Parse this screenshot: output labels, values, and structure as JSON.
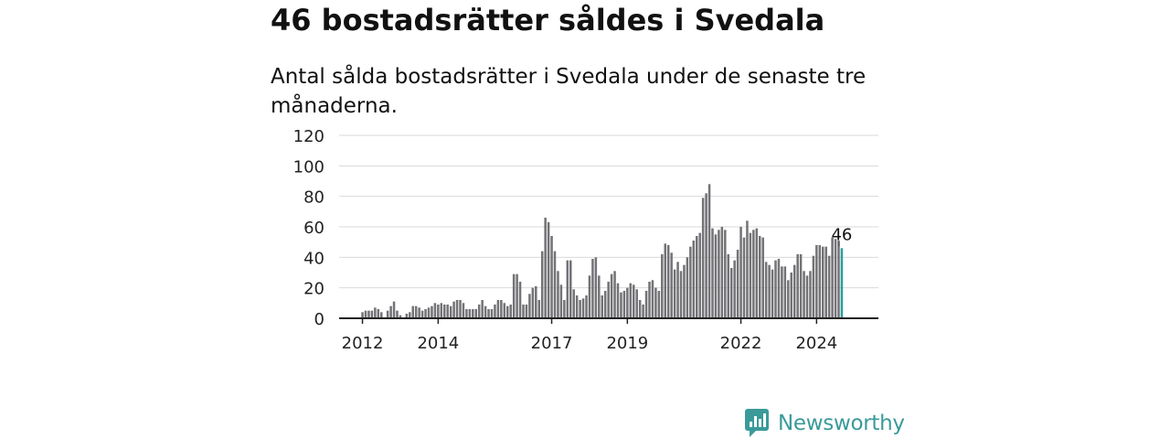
{
  "header": {
    "title": "46 bostadsrätter såldes i Svedala",
    "subtitle": "Antal sålda bostadsrätter i Svedala under de senaste tre månaderna."
  },
  "brand": {
    "name": "Newsworthy"
  },
  "colors": {
    "bar": "#737276",
    "highlight": "#2a9d9c",
    "grid": "#d9d9d9",
    "axis": "#222222",
    "brand": "#3a9a99"
  },
  "chart_data": {
    "type": "bar",
    "title": "",
    "xlabel": "",
    "ylabel": "",
    "ylim": [
      0,
      120
    ],
    "yticks": [
      "0",
      "20",
      "40",
      "60",
      "80",
      "100",
      "120"
    ],
    "xticks": [
      {
        "label": "2012",
        "index": 3
      },
      {
        "label": "2014",
        "index": 27
      },
      {
        "label": "2017",
        "index": 63
      },
      {
        "label": "2019",
        "index": 87
      },
      {
        "label": "2022",
        "index": 123
      },
      {
        "label": "2024",
        "index": 147
      }
    ],
    "start": "2011-10",
    "interval": "month",
    "values": [
      0,
      0,
      0,
      4,
      5,
      5,
      5,
      7,
      6,
      4,
      0,
      5,
      8,
      11,
      5,
      2,
      0,
      3,
      4,
      8,
      8,
      7,
      5,
      6,
      7,
      8,
      10,
      9,
      10,
      9,
      9,
      8,
      11,
      12,
      12,
      10,
      6,
      6,
      6,
      6,
      9,
      12,
      8,
      6,
      6,
      9,
      12,
      12,
      10,
      8,
      9,
      29,
      29,
      24,
      9,
      9,
      16,
      20,
      21,
      12,
      44,
      66,
      63,
      54,
      44,
      31,
      22,
      12,
      38,
      38,
      19,
      15,
      12,
      13,
      15,
      28,
      39,
      40,
      28,
      15,
      18,
      24,
      29,
      31,
      23,
      17,
      18,
      20,
      23,
      22,
      19,
      12,
      9,
      18,
      24,
      25,
      20,
      18,
      42,
      49,
      48,
      43,
      32,
      37,
      31,
      35,
      40,
      47,
      51,
      54,
      56,
      79,
      82,
      88,
      59,
      55,
      58,
      60,
      58,
      42,
      33,
      38,
      45,
      60,
      53,
      64,
      56,
      58,
      59,
      54,
      53,
      37,
      35,
      32,
      38,
      39,
      34,
      34,
      25,
      30,
      35,
      42,
      42,
      31,
      28,
      31,
      41,
      48,
      48,
      47,
      47,
      41,
      53,
      52,
      51,
      46
    ],
    "highlight_last": true,
    "annotation": {
      "text": "46",
      "index": 155
    },
    "grid": true,
    "legend": "none"
  }
}
